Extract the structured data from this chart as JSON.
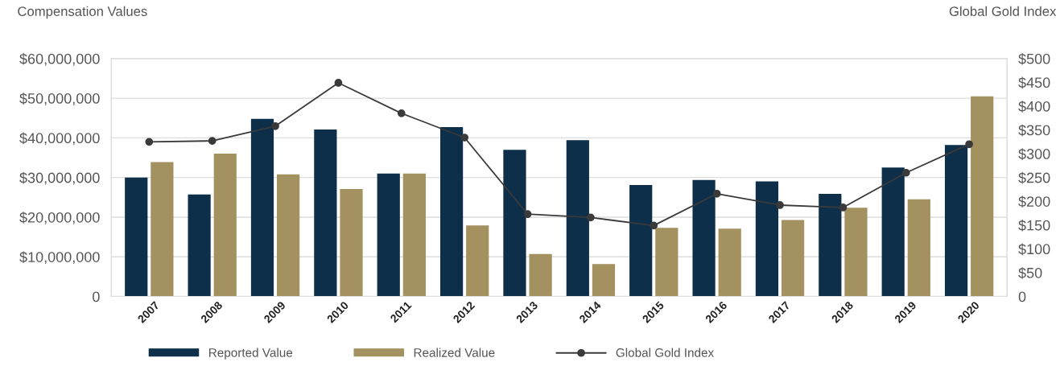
{
  "chart_data": {
    "type": "bar",
    "ylabel": "Compensation Values",
    "y2label": "Global Gold Index",
    "categories": [
      "2007",
      "2008",
      "2009",
      "2010",
      "2011",
      "2012",
      "2013",
      "2014",
      "2015",
      "2016",
      "2017",
      "2018",
      "2019",
      "2020"
    ],
    "series": [
      {
        "name": "Reported Value",
        "color": "#0d2f4a",
        "values": [
          30000000,
          25700000,
          44800000,
          42100000,
          31000000,
          42700000,
          37000000,
          39400000,
          28100000,
          29400000,
          29000000,
          25900000,
          32500000,
          38200000
        ]
      },
      {
        "name": "Realized Value",
        "color": "#a39160",
        "values": [
          33900000,
          36000000,
          30800000,
          27100000,
          31000000,
          17900000,
          10700000,
          8200000,
          17300000,
          17100000,
          19300000,
          22400000,
          24500000,
          50500000
        ]
      },
      {
        "name": "Global Gold Index",
        "type": "line",
        "axis": "y2",
        "color": "#3a3a3a",
        "marker": "circle",
        "values": [
          325,
          327,
          358,
          449,
          385,
          334,
          173,
          166,
          149,
          216,
          192,
          187,
          260,
          320
        ]
      }
    ],
    "ylim": [
      0,
      60000000
    ],
    "yticks": [
      {
        "value": 0,
        "label": "0"
      },
      {
        "value": 10000000,
        "label": "$10,000,000"
      },
      {
        "value": 20000000,
        "label": "$20,000,000"
      },
      {
        "value": 30000000,
        "label": "$30,000,000"
      },
      {
        "value": 40000000,
        "label": "$40,000,000"
      },
      {
        "value": 50000000,
        "label": "$50,000,000"
      },
      {
        "value": 60000000,
        "label": "$60,000,000"
      }
    ],
    "y2lim": [
      0,
      500
    ],
    "y2ticks": [
      {
        "value": 0,
        "label": "0"
      },
      {
        "value": 50,
        "label": "$50"
      },
      {
        "value": 100,
        "label": "$100"
      },
      {
        "value": 150,
        "label": "$150"
      },
      {
        "value": 200,
        "label": "$200"
      },
      {
        "value": 250,
        "label": "$250"
      },
      {
        "value": 300,
        "label": "$300"
      },
      {
        "value": 350,
        "label": "$350"
      },
      {
        "value": 400,
        "label": "$400"
      },
      {
        "value": 450,
        "label": "$450"
      },
      {
        "value": 500,
        "label": "$500"
      }
    ],
    "grid": "y",
    "legend": "bottom"
  }
}
